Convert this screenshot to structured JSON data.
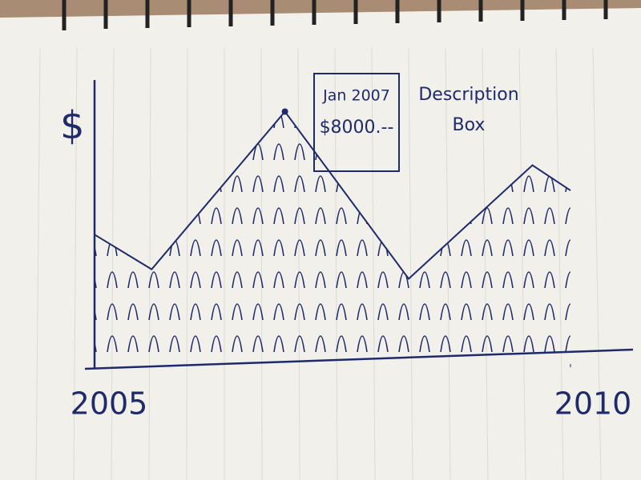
{
  "chart_data": {
    "type": "area",
    "y_label": "$",
    "x": [
      2005,
      2005.6,
      2007,
      2008.3,
      2009.6,
      2010
    ],
    "series": [
      {
        "color": "#1f2a6b",
        "values": [
          4100,
          3000,
          8000,
          2700,
          6300,
          5500
        ]
      }
    ],
    "xlim": [
      2005,
      2010
    ],
    "xticks": [
      2005,
      2010
    ],
    "ylim": [
      0,
      9000
    ],
    "annotation": {
      "date": "Jan 2007",
      "value_label": "$8000.--",
      "note": "Description Box"
    }
  }
}
